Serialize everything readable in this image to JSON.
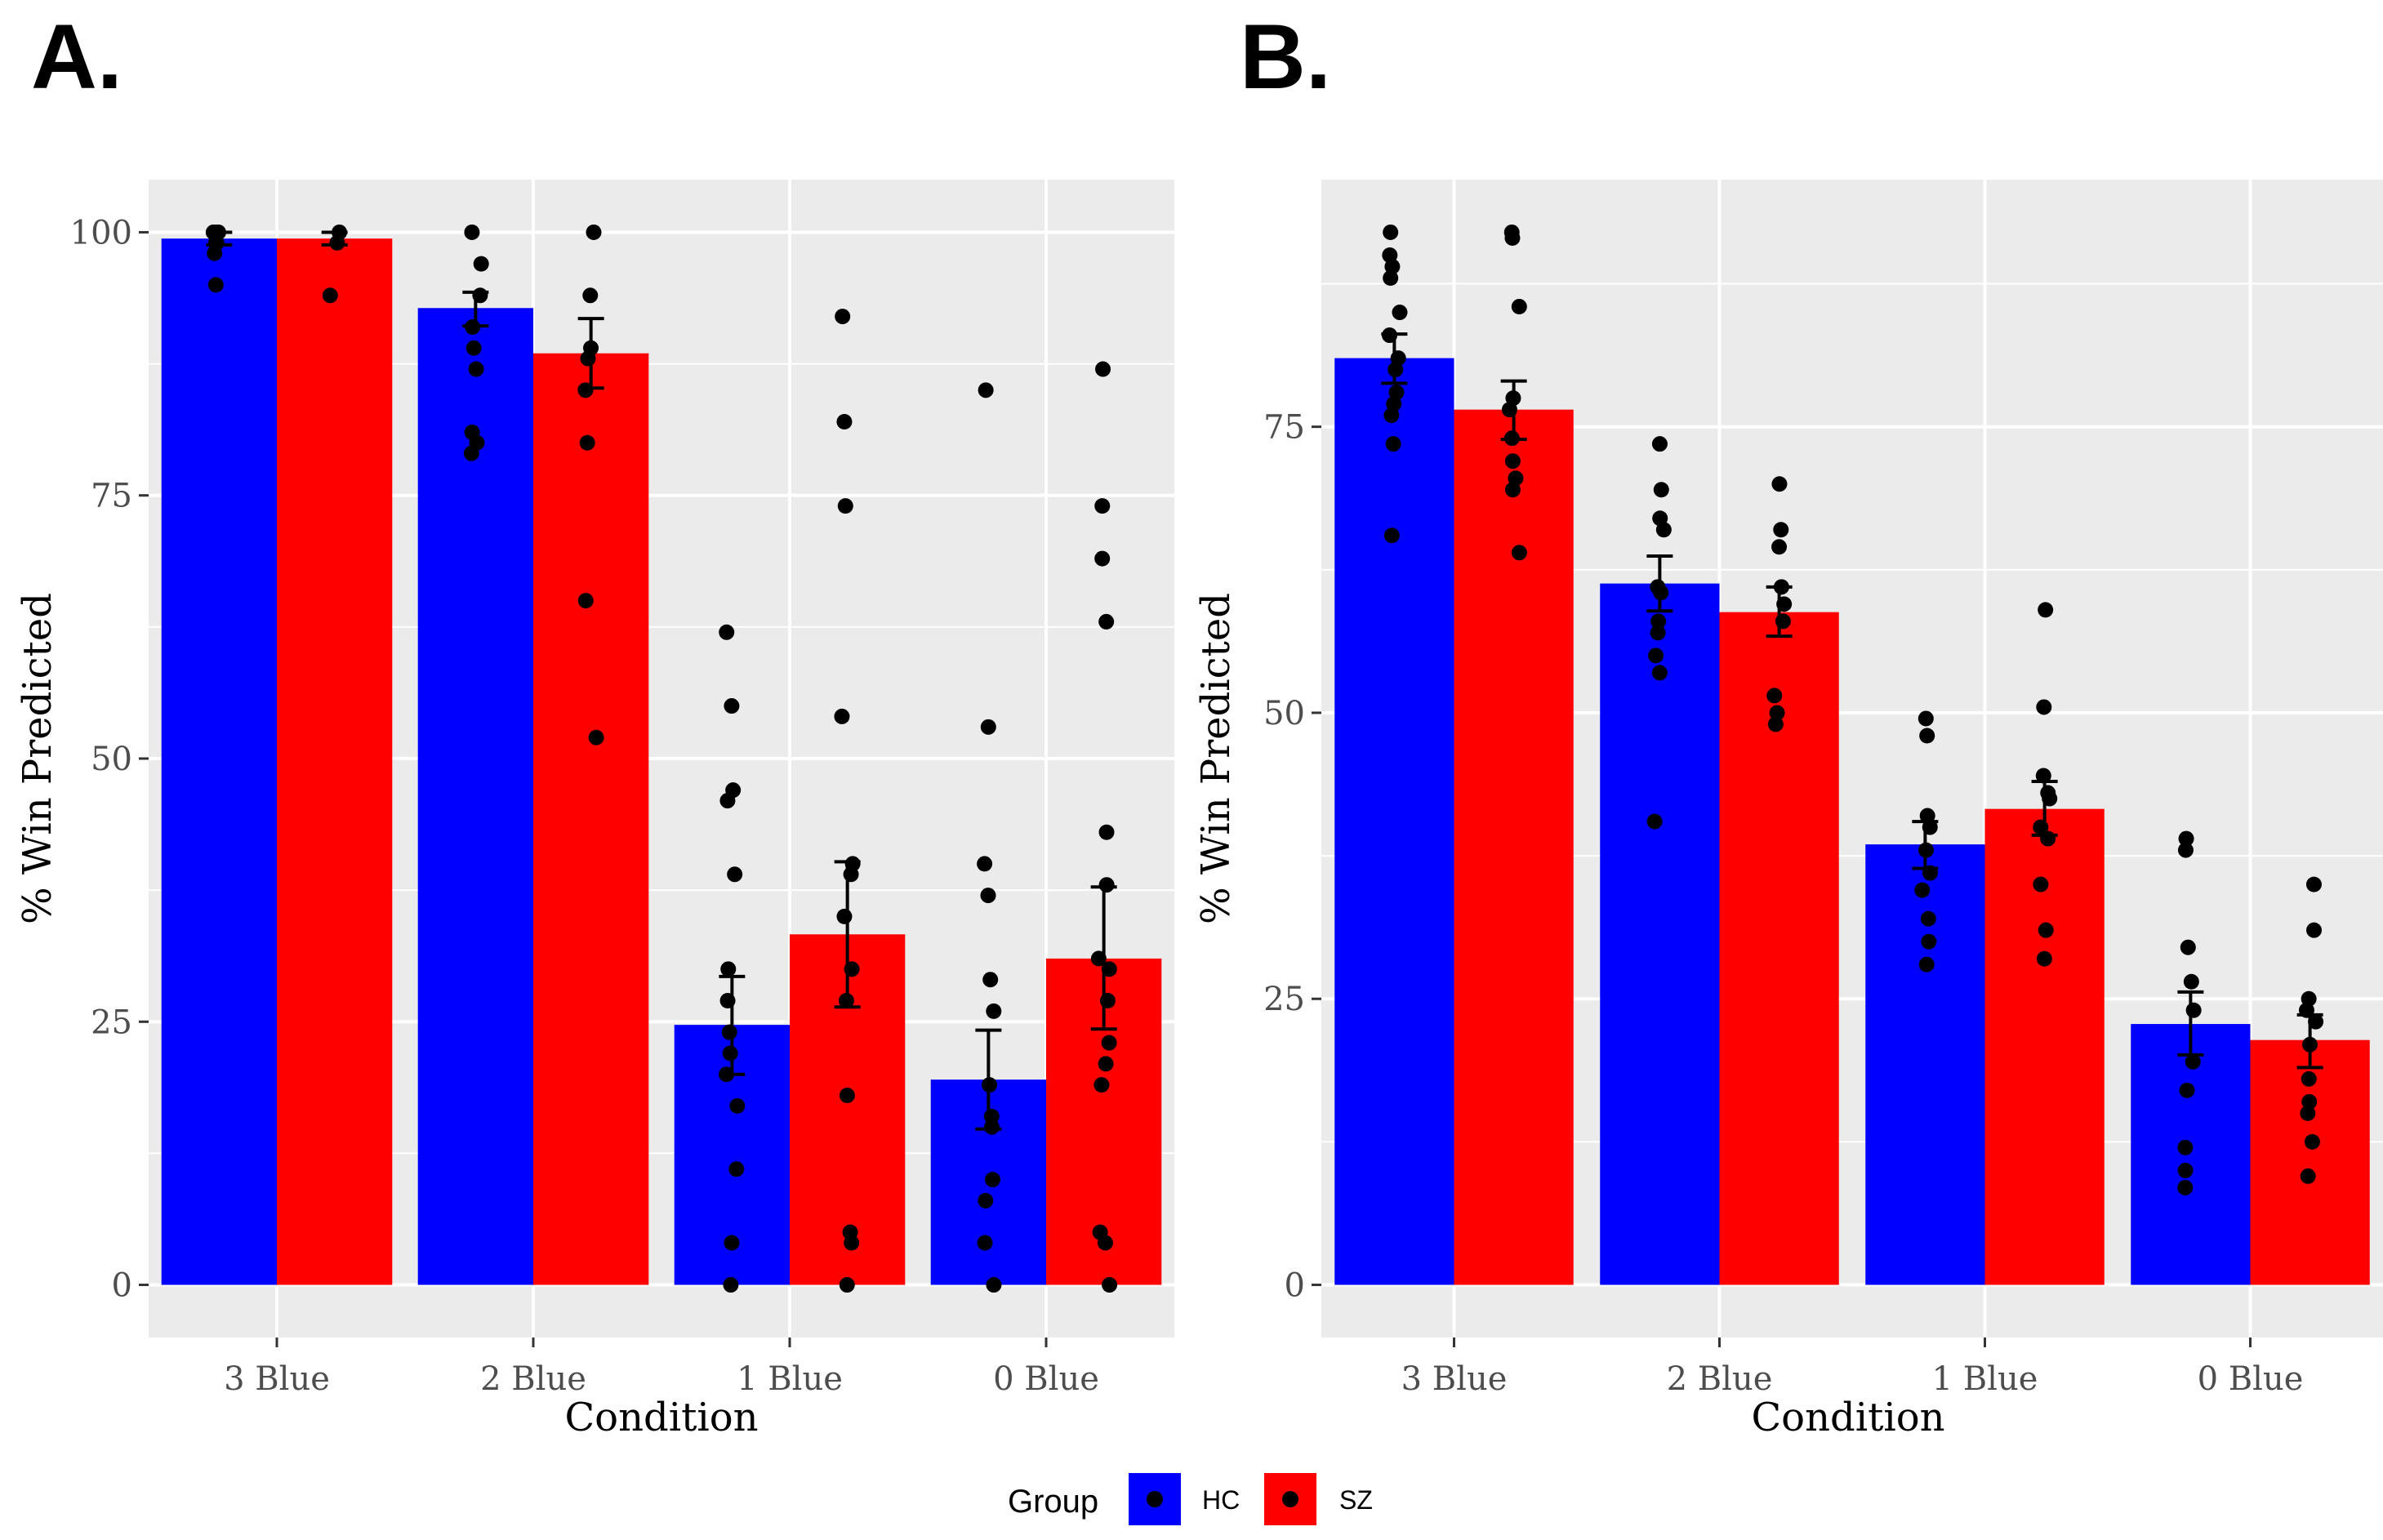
{
  "legend": {
    "title": "Group",
    "items": [
      {
        "label": "HC",
        "color": "#0000FF"
      },
      {
        "label": "SZ",
        "color": "#FF0000"
      }
    ]
  },
  "chart_data": [
    {
      "panel_label": "A.",
      "type": "bar",
      "xlabel": "Condition",
      "ylabel": "% Win Predicted",
      "categories": [
        "3 Blue",
        "2 Blue",
        "1 Blue",
        "0 Blue"
      ],
      "ylim": [
        -5,
        105
      ],
      "yticks": [
        0,
        25,
        50,
        75,
        100
      ],
      "yticklabels": [
        "0",
        "25",
        "50",
        "75",
        "100"
      ],
      "y_minor_ticks": [
        12.5,
        37.5,
        62.5,
        87.5
      ],
      "series": [
        {
          "name": "HC",
          "color": "#0000FF",
          "values": [
            99.4,
            92.8,
            24.7,
            19.5
          ],
          "err_low": [
            98.8,
            91.1,
            20.0,
            14.8
          ],
          "err_high": [
            100.0,
            94.3,
            29.3,
            24.2
          ],
          "points": [
            [
              100,
              99,
              98,
              99,
              100,
              95,
              99,
              100
            ],
            [
              100,
              97,
              94,
              91,
              89,
              87,
              81,
              80,
              79
            ],
            [
              62,
              55,
              47,
              46,
              39,
              30,
              27,
              24,
              22,
              20,
              17,
              11,
              4,
              0
            ],
            [
              85,
              53,
              40,
              37,
              29,
              26,
              19,
              16,
              15,
              10,
              8,
              4,
              0
            ]
          ]
        },
        {
          "name": "SZ",
          "color": "#FF0000",
          "values": [
            99.4,
            88.5,
            33.3,
            31.0
          ],
          "err_low": [
            98.8,
            85.2,
            26.4,
            24.3
          ],
          "err_high": [
            100.0,
            91.8,
            40.2,
            37.8
          ],
          "points": [
            [
              100,
              99,
              94
            ],
            [
              100,
              94,
              89,
              88,
              85,
              80,
              65,
              52
            ],
            [
              92,
              82,
              74,
              54,
              40,
              39,
              35,
              30,
              27,
              18,
              5,
              4,
              0
            ],
            [
              87,
              74,
              69,
              63,
              43,
              38,
              31,
              30,
              27,
              23,
              21,
              19,
              5,
              4,
              0
            ]
          ]
        }
      ]
    },
    {
      "panel_label": "B.",
      "type": "bar",
      "xlabel": "Condition",
      "ylabel": "% Win Predicted",
      "categories": [
        "3 Blue",
        "2 Blue",
        "1 Blue",
        "0 Blue"
      ],
      "ylim": [
        -4.6,
        96.6
      ],
      "yticks": [
        0,
        25,
        50,
        75
      ],
      "yticklabels": [
        "0",
        "25",
        "50",
        "75"
      ],
      "y_minor_ticks": [
        12.5,
        37.5,
        62.5,
        87.5
      ],
      "series": [
        {
          "name": "HC",
          "color": "#0000FF",
          "values": [
            81.0,
            61.3,
            38.5,
            22.8
          ],
          "err_low": [
            78.8,
            58.9,
            36.4,
            20.1
          ],
          "err_high": [
            83.1,
            63.7,
            40.5,
            25.6
          ],
          "points": [
            [
              92,
              90,
              89,
              88,
              85,
              83,
              81,
              80,
              78,
              77,
              76,
              73.5,
              65.5
            ],
            [
              73.5,
              69.5,
              67,
              66,
              61,
              60.5,
              58,
              57,
              55,
              53.5,
              40.5
            ],
            [
              49.5,
              48,
              41,
              40,
              38,
              36,
              34.5,
              32,
              30,
              28
            ],
            [
              39,
              38,
              29.5,
              26.5,
              24,
              19.5,
              17,
              12,
              10,
              8.5
            ]
          ]
        },
        {
          "name": "SZ",
          "color": "#FF0000",
          "values": [
            76.5,
            58.8,
            41.6,
            21.4
          ],
          "err_low": [
            73.9,
            56.7,
            39.3,
            19.0
          ],
          "err_high": [
            79.0,
            61.0,
            44.0,
            23.6
          ],
          "points": [
            [
              92,
              91.5,
              85.5,
              77.5,
              76.5,
              74,
              72,
              70.5,
              69.5,
              64
            ],
            [
              70,
              66,
              64.5,
              61,
              59.5,
              58,
              51.5,
              50,
              49
            ],
            [
              59,
              50.5,
              44.5,
              43,
              42.5,
              40,
              39,
              35,
              31,
              28.5
            ],
            [
              35,
              31,
              25,
              24,
              23,
              21,
              18,
              16,
              15,
              12.5,
              9.5
            ]
          ]
        }
      ]
    }
  ]
}
